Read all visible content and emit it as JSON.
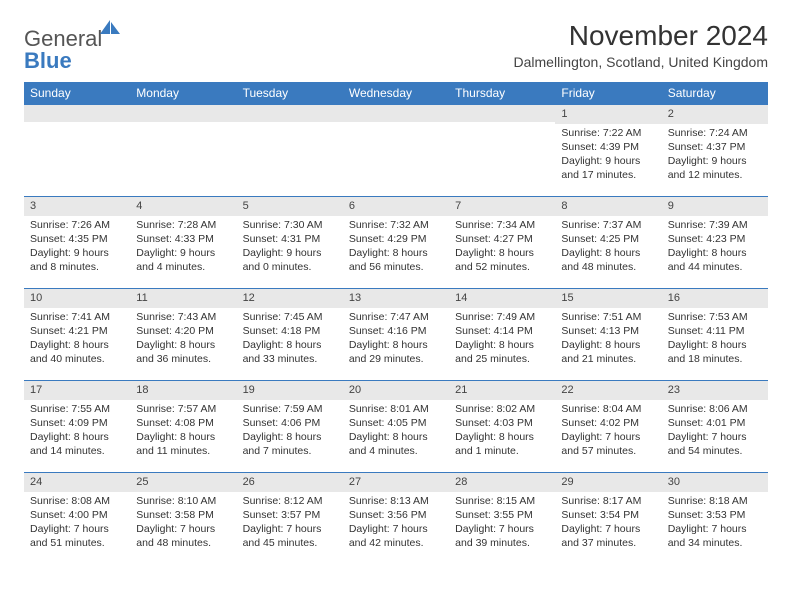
{
  "logo": {
    "text_general": "General",
    "text_blue": "Blue"
  },
  "header": {
    "month_title": "November 2024",
    "location": "Dalmellington, Scotland, United Kingdom"
  },
  "colors": {
    "brand_blue": "#3a7abf",
    "header_bg": "#3a7abf",
    "cell_num_bg": "#e8e8e8",
    "text": "#333333",
    "background": "#ffffff"
  },
  "calendar": {
    "weekdays": [
      "Sunday",
      "Monday",
      "Tuesday",
      "Wednesday",
      "Thursday",
      "Friday",
      "Saturday"
    ],
    "leading_blanks": 5,
    "days": [
      {
        "n": "1",
        "sunrise": "Sunrise: 7:22 AM",
        "sunset": "Sunset: 4:39 PM",
        "daylight": "Daylight: 9 hours and 17 minutes."
      },
      {
        "n": "2",
        "sunrise": "Sunrise: 7:24 AM",
        "sunset": "Sunset: 4:37 PM",
        "daylight": "Daylight: 9 hours and 12 minutes."
      },
      {
        "n": "3",
        "sunrise": "Sunrise: 7:26 AM",
        "sunset": "Sunset: 4:35 PM",
        "daylight": "Daylight: 9 hours and 8 minutes."
      },
      {
        "n": "4",
        "sunrise": "Sunrise: 7:28 AM",
        "sunset": "Sunset: 4:33 PM",
        "daylight": "Daylight: 9 hours and 4 minutes."
      },
      {
        "n": "5",
        "sunrise": "Sunrise: 7:30 AM",
        "sunset": "Sunset: 4:31 PM",
        "daylight": "Daylight: 9 hours and 0 minutes."
      },
      {
        "n": "6",
        "sunrise": "Sunrise: 7:32 AM",
        "sunset": "Sunset: 4:29 PM",
        "daylight": "Daylight: 8 hours and 56 minutes."
      },
      {
        "n": "7",
        "sunrise": "Sunrise: 7:34 AM",
        "sunset": "Sunset: 4:27 PM",
        "daylight": "Daylight: 8 hours and 52 minutes."
      },
      {
        "n": "8",
        "sunrise": "Sunrise: 7:37 AM",
        "sunset": "Sunset: 4:25 PM",
        "daylight": "Daylight: 8 hours and 48 minutes."
      },
      {
        "n": "9",
        "sunrise": "Sunrise: 7:39 AM",
        "sunset": "Sunset: 4:23 PM",
        "daylight": "Daylight: 8 hours and 44 minutes."
      },
      {
        "n": "10",
        "sunrise": "Sunrise: 7:41 AM",
        "sunset": "Sunset: 4:21 PM",
        "daylight": "Daylight: 8 hours and 40 minutes."
      },
      {
        "n": "11",
        "sunrise": "Sunrise: 7:43 AM",
        "sunset": "Sunset: 4:20 PM",
        "daylight": "Daylight: 8 hours and 36 minutes."
      },
      {
        "n": "12",
        "sunrise": "Sunrise: 7:45 AM",
        "sunset": "Sunset: 4:18 PM",
        "daylight": "Daylight: 8 hours and 33 minutes."
      },
      {
        "n": "13",
        "sunrise": "Sunrise: 7:47 AM",
        "sunset": "Sunset: 4:16 PM",
        "daylight": "Daylight: 8 hours and 29 minutes."
      },
      {
        "n": "14",
        "sunrise": "Sunrise: 7:49 AM",
        "sunset": "Sunset: 4:14 PM",
        "daylight": "Daylight: 8 hours and 25 minutes."
      },
      {
        "n": "15",
        "sunrise": "Sunrise: 7:51 AM",
        "sunset": "Sunset: 4:13 PM",
        "daylight": "Daylight: 8 hours and 21 minutes."
      },
      {
        "n": "16",
        "sunrise": "Sunrise: 7:53 AM",
        "sunset": "Sunset: 4:11 PM",
        "daylight": "Daylight: 8 hours and 18 minutes."
      },
      {
        "n": "17",
        "sunrise": "Sunrise: 7:55 AM",
        "sunset": "Sunset: 4:09 PM",
        "daylight": "Daylight: 8 hours and 14 minutes."
      },
      {
        "n": "18",
        "sunrise": "Sunrise: 7:57 AM",
        "sunset": "Sunset: 4:08 PM",
        "daylight": "Daylight: 8 hours and 11 minutes."
      },
      {
        "n": "19",
        "sunrise": "Sunrise: 7:59 AM",
        "sunset": "Sunset: 4:06 PM",
        "daylight": "Daylight: 8 hours and 7 minutes."
      },
      {
        "n": "20",
        "sunrise": "Sunrise: 8:01 AM",
        "sunset": "Sunset: 4:05 PM",
        "daylight": "Daylight: 8 hours and 4 minutes."
      },
      {
        "n": "21",
        "sunrise": "Sunrise: 8:02 AM",
        "sunset": "Sunset: 4:03 PM",
        "daylight": "Daylight: 8 hours and 1 minute."
      },
      {
        "n": "22",
        "sunrise": "Sunrise: 8:04 AM",
        "sunset": "Sunset: 4:02 PM",
        "daylight": "Daylight: 7 hours and 57 minutes."
      },
      {
        "n": "23",
        "sunrise": "Sunrise: 8:06 AM",
        "sunset": "Sunset: 4:01 PM",
        "daylight": "Daylight: 7 hours and 54 minutes."
      },
      {
        "n": "24",
        "sunrise": "Sunrise: 8:08 AM",
        "sunset": "Sunset: 4:00 PM",
        "daylight": "Daylight: 7 hours and 51 minutes."
      },
      {
        "n": "25",
        "sunrise": "Sunrise: 8:10 AM",
        "sunset": "Sunset: 3:58 PM",
        "daylight": "Daylight: 7 hours and 48 minutes."
      },
      {
        "n": "26",
        "sunrise": "Sunrise: 8:12 AM",
        "sunset": "Sunset: 3:57 PM",
        "daylight": "Daylight: 7 hours and 45 minutes."
      },
      {
        "n": "27",
        "sunrise": "Sunrise: 8:13 AM",
        "sunset": "Sunset: 3:56 PM",
        "daylight": "Daylight: 7 hours and 42 minutes."
      },
      {
        "n": "28",
        "sunrise": "Sunrise: 8:15 AM",
        "sunset": "Sunset: 3:55 PM",
        "daylight": "Daylight: 7 hours and 39 minutes."
      },
      {
        "n": "29",
        "sunrise": "Sunrise: 8:17 AM",
        "sunset": "Sunset: 3:54 PM",
        "daylight": "Daylight: 7 hours and 37 minutes."
      },
      {
        "n": "30",
        "sunrise": "Sunrise: 8:18 AM",
        "sunset": "Sunset: 3:53 PM",
        "daylight": "Daylight: 7 hours and 34 minutes."
      }
    ]
  }
}
